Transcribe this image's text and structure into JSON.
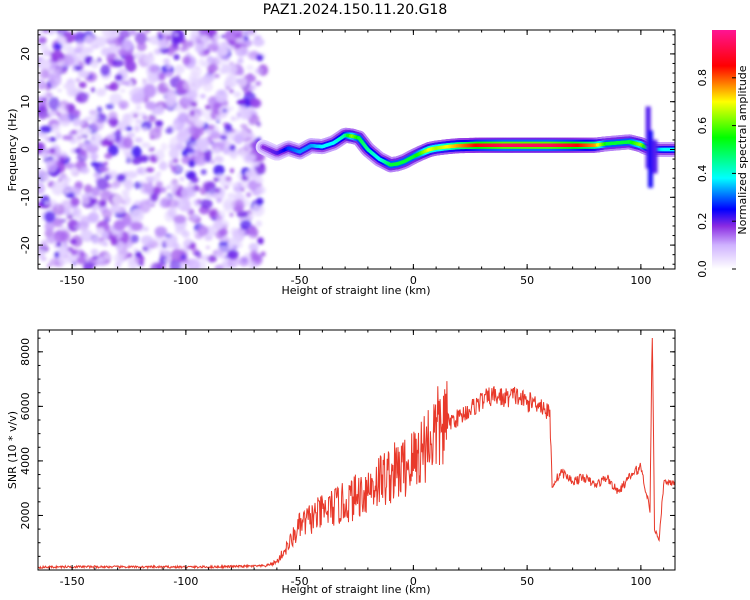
{
  "title": "PAZ1.2024.150.11.20.G18",
  "chart_data": [
    {
      "type": "heatmap",
      "xlabel": "Height of straight line (km)",
      "ylabel": "Frequency (Hz)",
      "xlim": [
        -165,
        115
      ],
      "ylim": [
        -25,
        25
      ],
      "xticks": [
        -150,
        -100,
        -50,
        0,
        50,
        100
      ],
      "yticks": [
        -20,
        -10,
        0,
        10,
        20
      ],
      "noise_region_x": [
        -165,
        -66
      ],
      "colorbar": {
        "label": "Normalized spectral amplitude",
        "ticks": [
          0.0,
          0.2,
          0.4,
          0.6,
          0.8
        ],
        "range": [
          0,
          1
        ],
        "colors": [
          "#ffffff",
          "#cfb2ff",
          "#8a2be2",
          "#0000ff",
          "#00ffff",
          "#00ff00",
          "#ffff00",
          "#ff0000",
          "#ff1493"
        ]
      },
      "ridge": {
        "x": [
          -66,
          -60,
          -55,
          -50,
          -45,
          -40,
          -35,
          -30,
          -27,
          -24,
          -20,
          -15,
          -10,
          -7,
          -4,
          0,
          3,
          7,
          10,
          15,
          20,
          30,
          40,
          50,
          60,
          70,
          80,
          85,
          90,
          95,
          100,
          102,
          104,
          106,
          110,
          115
        ],
        "y": [
          0.5,
          -0.8,
          0.3,
          -0.5,
          0.8,
          0.6,
          1.4,
          3.0,
          2.8,
          2.4,
          0.0,
          -2.0,
          -3.2,
          -3.0,
          -2.5,
          -1.5,
          -0.8,
          0.0,
          0.3,
          0.6,
          0.8,
          0.9,
          0.9,
          0.9,
          0.9,
          0.9,
          0.9,
          1.2,
          1.4,
          1.6,
          1.0,
          0.5,
          0.2,
          0.0,
          0.0,
          0.0
        ],
        "amp": [
          0.25,
          0.3,
          0.4,
          0.45,
          0.45,
          0.5,
          0.5,
          0.55,
          0.7,
          0.6,
          0.55,
          0.5,
          0.6,
          0.6,
          0.6,
          0.6,
          0.65,
          0.75,
          0.7,
          0.75,
          0.8,
          0.9,
          0.95,
          0.95,
          0.95,
          0.9,
          0.8,
          0.6,
          0.6,
          0.6,
          0.7,
          0.6,
          0.5,
          0.45,
          0.5,
          0.5
        ]
      }
    },
    {
      "type": "line",
      "xlabel": "Height of straight line (km)",
      "ylabel": "SNR (10 * v/v)",
      "xlim": [
        -165,
        115
      ],
      "ylim": [
        0,
        8800
      ],
      "xticks": [
        -150,
        -100,
        -50,
        0,
        50,
        100
      ],
      "yticks": [
        2000,
        4000,
        6000,
        8000
      ],
      "color": "#e8392a",
      "series": [
        {
          "x": [
            -165,
            -150,
            -120,
            -90,
            -65,
            -60,
            -55,
            -50,
            -45,
            -40,
            -35,
            -30,
            -25,
            -20,
            -15,
            -10,
            -5,
            0,
            5,
            10,
            15,
            20,
            25,
            30,
            35,
            40,
            45,
            50,
            55,
            60,
            61,
            65,
            70,
            75,
            80,
            85,
            90,
            95,
            100,
            102,
            104,
            105,
            106,
            108,
            110,
            115
          ],
          "y": [
            100,
            120,
            110,
            110,
            150,
            300,
            900,
            1600,
            1900,
            2100,
            2300,
            2450,
            2700,
            3000,
            3300,
            3500,
            3700,
            4000,
            4600,
            5100,
            5400,
            5600,
            5900,
            6200,
            6400,
            6300,
            6400,
            6150,
            6150,
            5700,
            3100,
            3600,
            3250,
            3400,
            3100,
            3400,
            2850,
            3400,
            3800,
            3000,
            2200,
            8800,
            1500,
            1100,
            3200,
            3250
          ]
        }
      ]
    }
  ]
}
